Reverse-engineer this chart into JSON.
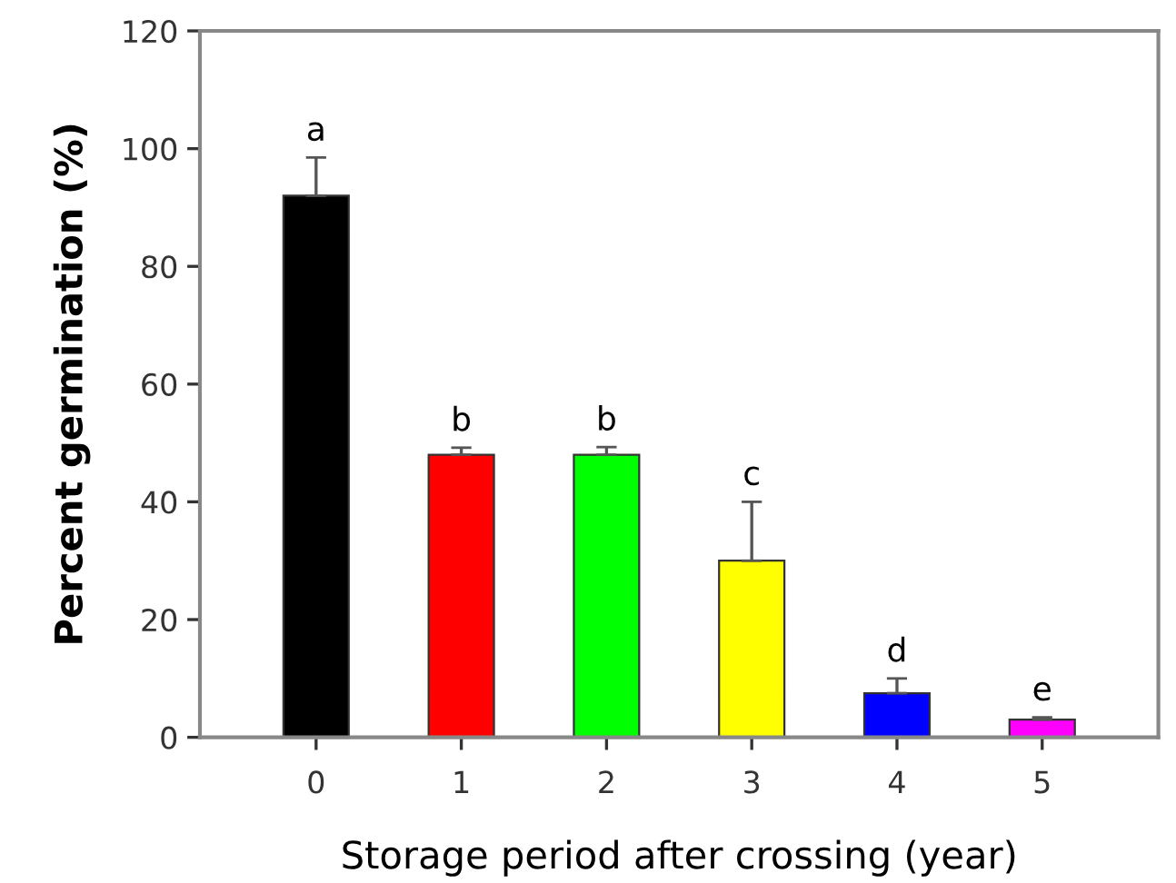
{
  "chart_data": {
    "type": "bar",
    "xlabel": "Storage period after crossing (year)",
    "ylabel": "Percent germination (%)",
    "categories": [
      "0",
      "1",
      "2",
      "3",
      "4",
      "5"
    ],
    "values": [
      92,
      48,
      48,
      30,
      7.5,
      3
    ],
    "errors": [
      6.5,
      1.2,
      1.3,
      10,
      2.5,
      0.4
    ],
    "colors": [
      "#000000",
      "#ff0000",
      "#00ff00",
      "#ffff00",
      "#0000ff",
      "#ff00ff"
    ],
    "ylim": [
      0,
      120
    ],
    "yticks": [
      0,
      20,
      40,
      60,
      80,
      100,
      120
    ],
    "grid": false,
    "annotations": [
      {
        "text": "a",
        "x": "0",
        "y": 98.5
      },
      {
        "text": "b",
        "x": "1",
        "y": 49.2
      },
      {
        "text": "b",
        "x": "2",
        "y": 49.3
      },
      {
        "text": "c",
        "x": "3",
        "y": 40
      },
      {
        "text": "d",
        "x": "4",
        "y": 10
      },
      {
        "text": "e",
        "x": "5",
        "y": 3.4
      }
    ]
  }
}
